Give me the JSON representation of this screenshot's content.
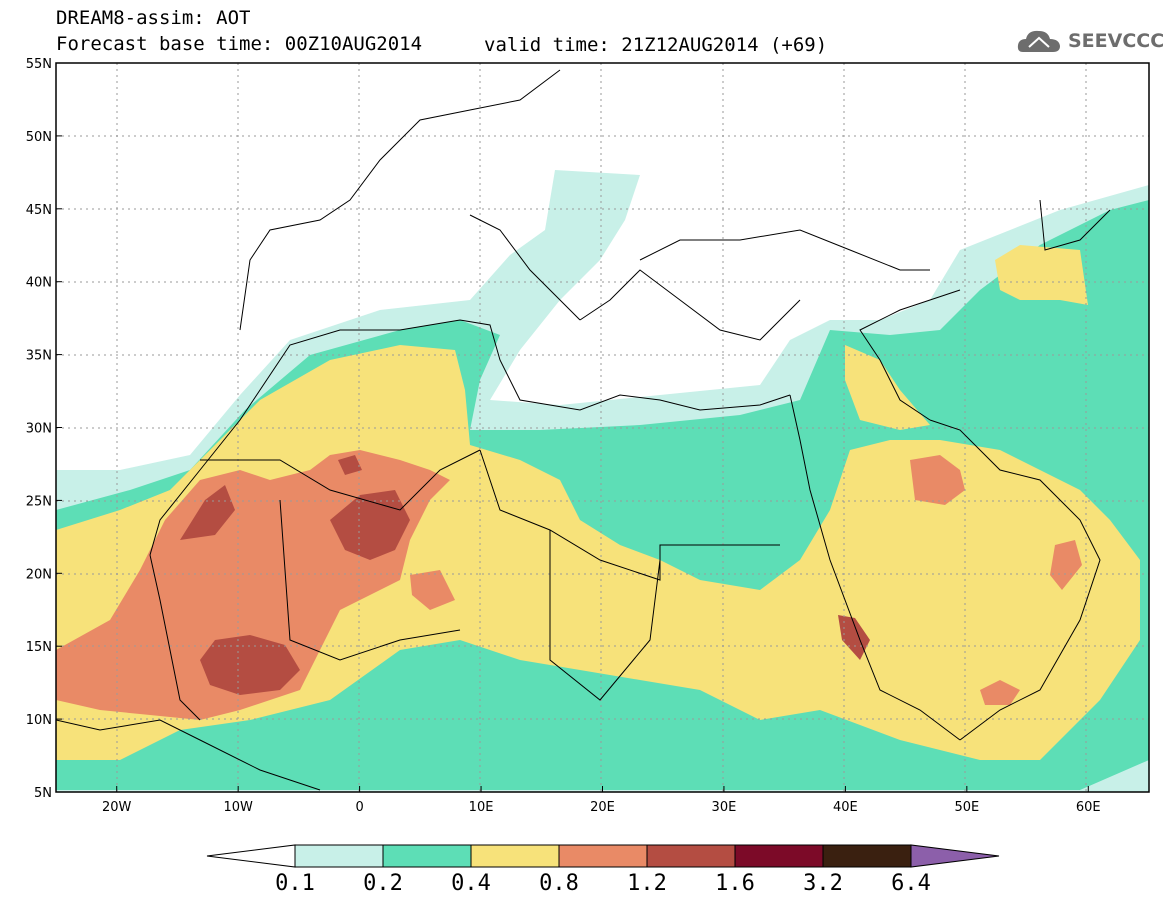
{
  "title": {
    "line1": "DREAM8-assim: AOT",
    "line2": "Forecast base time: 00Z10AUG2014",
    "valid": "valid time: 21Z12AUG2014 (+69)"
  },
  "logo": {
    "text": "SEEVCCC",
    "icon": "cloud-icon"
  },
  "map": {
    "lon_range": [
      -25,
      65
    ],
    "lat_range": [
      5,
      55
    ],
    "lat_ticks": [
      "55N",
      "50N",
      "45N",
      "40N",
      "35N",
      "30N",
      "25N",
      "20N",
      "15N",
      "10N",
      "5N"
    ],
    "lon_ticks": [
      "20W",
      "10W",
      "0",
      "10E",
      "20E",
      "30E",
      "40E",
      "50E",
      "60E"
    ]
  },
  "colorbar": {
    "levels": [
      "0.1",
      "0.2",
      "0.4",
      "0.8",
      "1.2",
      "1.6",
      "3.2",
      "6.4"
    ],
    "colors": [
      "#c8f0e8",
      "#5ddeb6",
      "#f7e27a",
      "#e98a66",
      "#b44d42",
      "#7c0a28",
      "#3a2010",
      "#8c5faa"
    ]
  }
}
